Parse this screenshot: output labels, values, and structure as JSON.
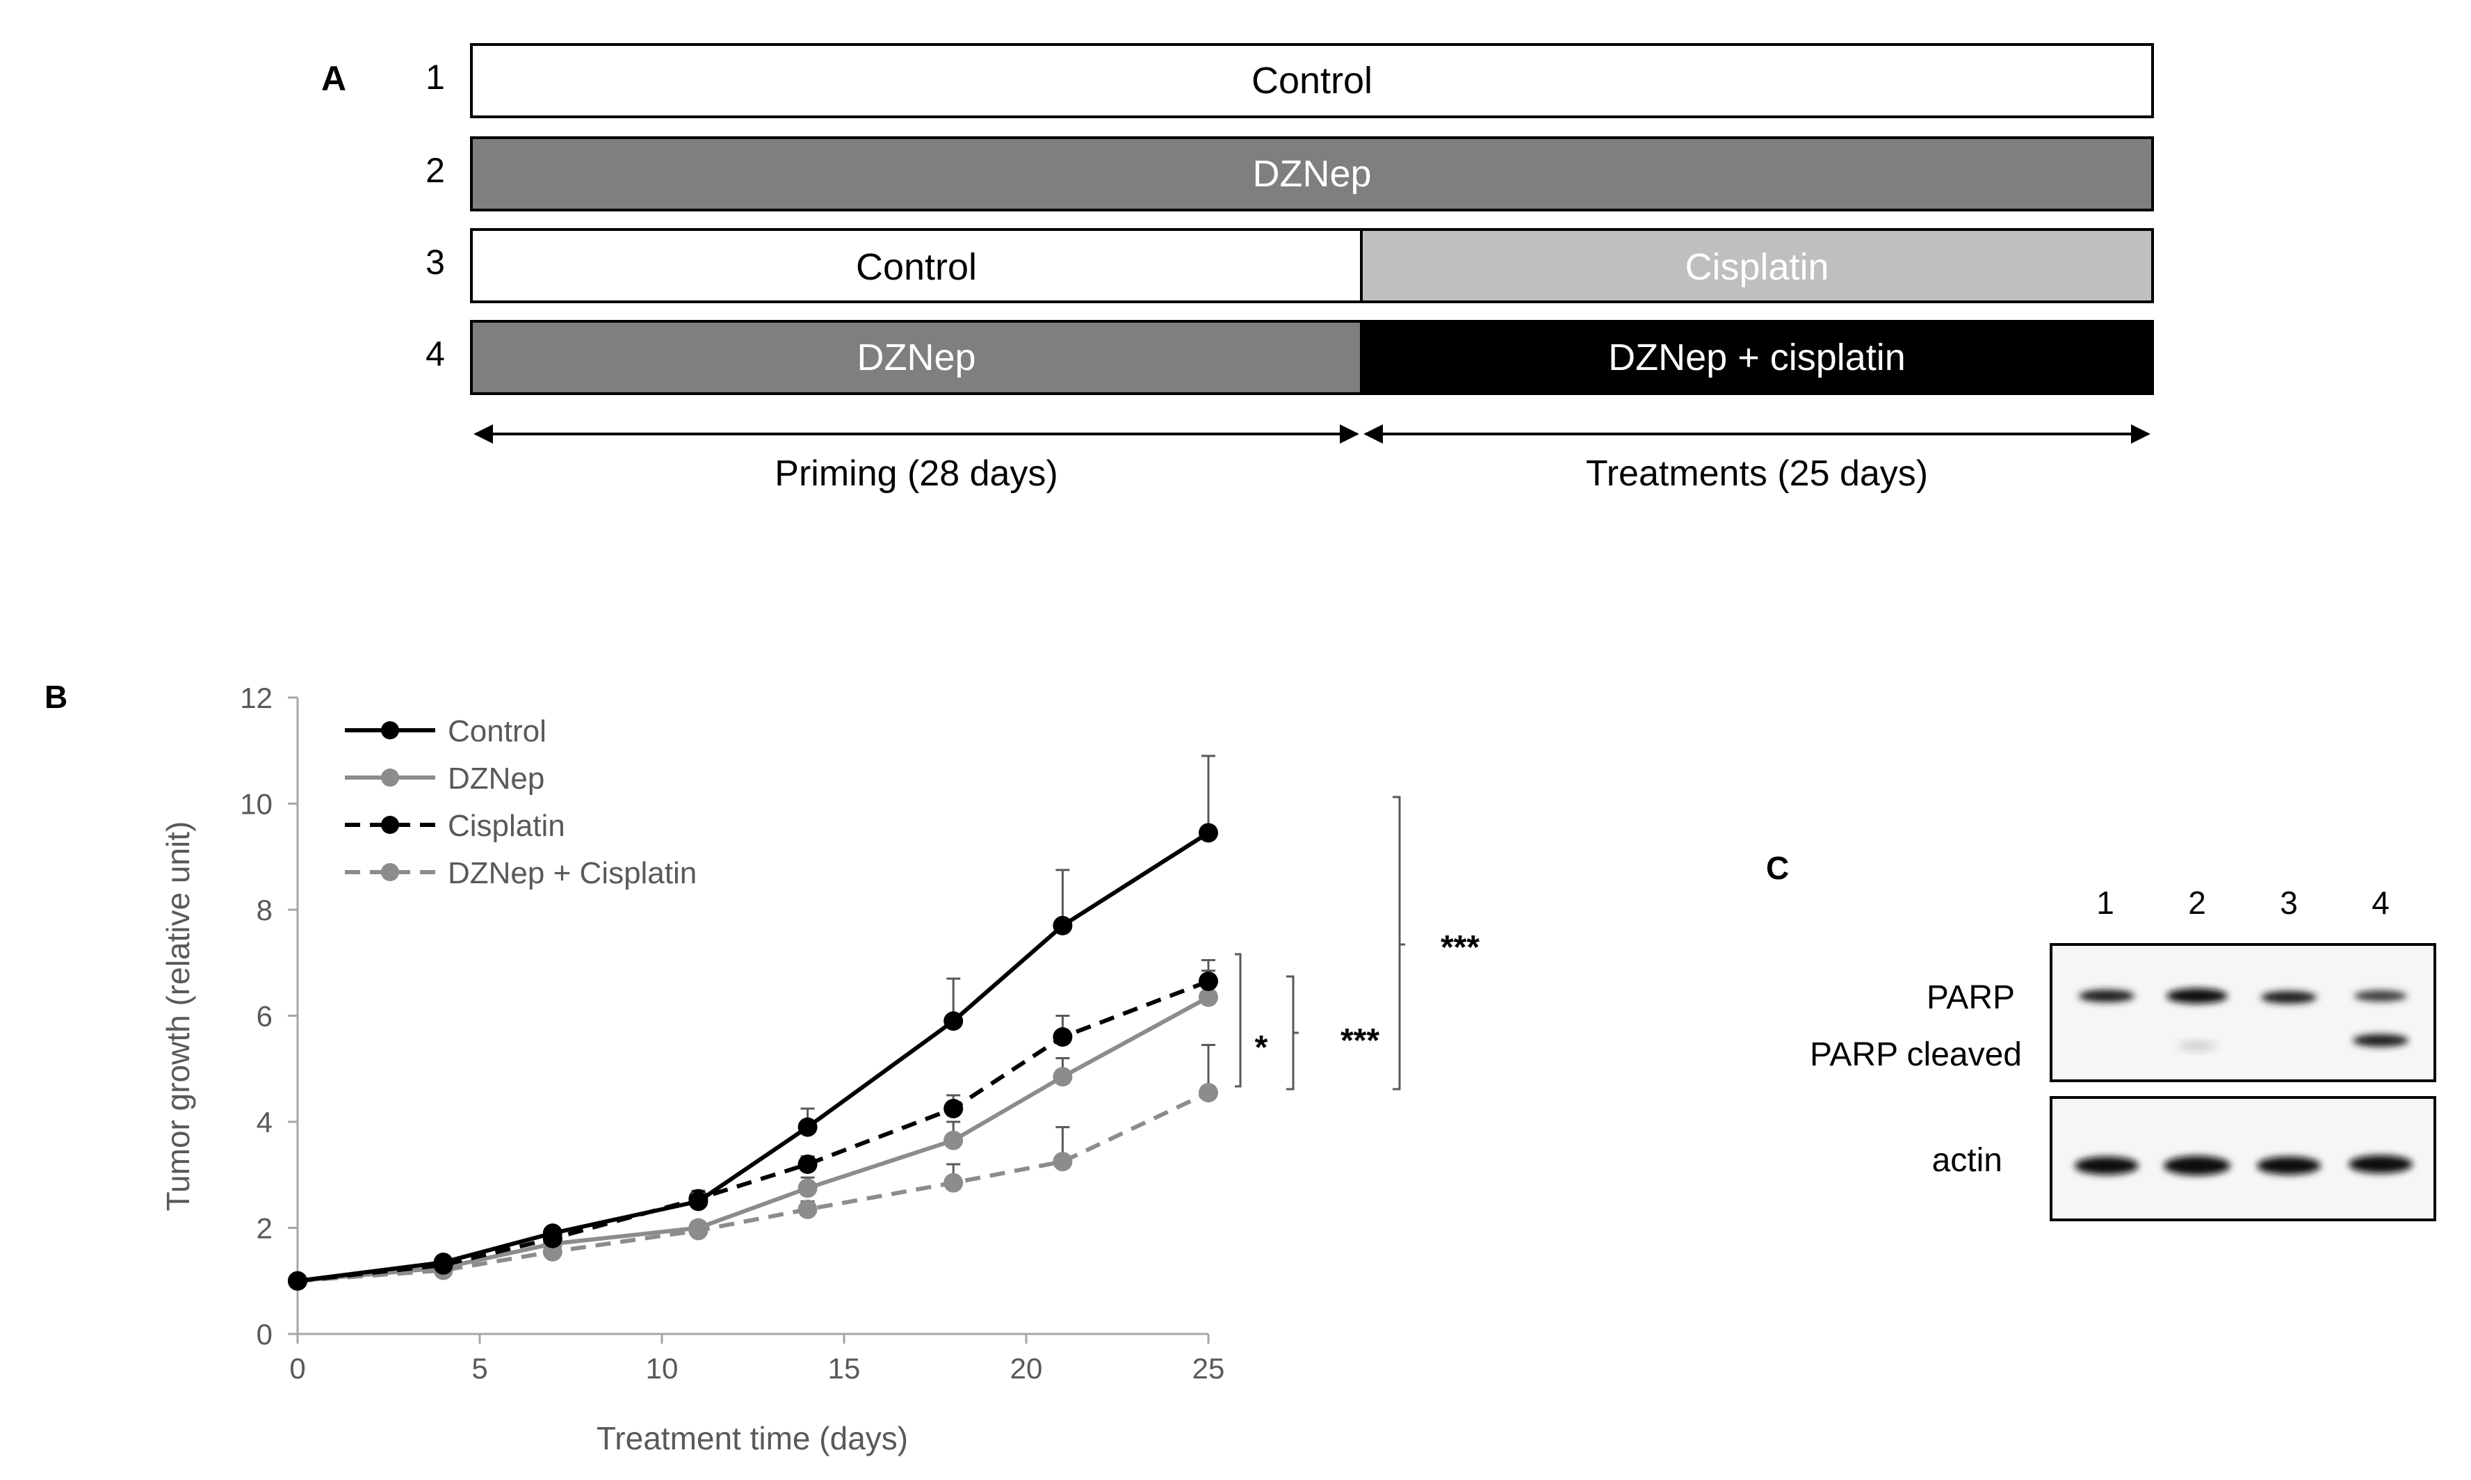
{
  "panel_a": {
    "label": "A",
    "rows": [
      {
        "number": "1",
        "segments": [
          {
            "text": "Control",
            "fill": "#ffffff",
            "text_color": "#000000"
          }
        ]
      },
      {
        "number": "2",
        "segments": [
          {
            "text": "DZNep",
            "fill": "#7f7f7f",
            "text_color": "#ffffff"
          }
        ]
      },
      {
        "number": "3",
        "segments": [
          {
            "text": "Control",
            "fill": "#ffffff",
            "text_color": "#000000"
          },
          {
            "text": "Cisplatin",
            "fill": "#bfbfbf",
            "text_color": "#ffffff"
          }
        ]
      },
      {
        "number": "4",
        "segments": [
          {
            "text": "DZNep",
            "fill": "#7f7f7f",
            "text_color": "#ffffff"
          },
          {
            "text": "DZNep + cisplatin",
            "fill": "#000000",
            "text_color": "#ffffff"
          }
        ]
      }
    ],
    "phases": [
      "Priming (28 days)",
      "Treatments (25 days)"
    ]
  },
  "panel_b": {
    "label": "B",
    "significance": [
      "*",
      "***",
      "***"
    ]
  },
  "chart_data": {
    "type": "line",
    "title": "",
    "xlabel": "Treatment time (days)",
    "ylabel": "Tumor growth (relative unit)",
    "xlim": [
      0,
      25
    ],
    "ylim": [
      0,
      12
    ],
    "x_ticks": [
      0,
      5,
      10,
      15,
      20,
      25
    ],
    "y_ticks": [
      0,
      2,
      4,
      6,
      8,
      10,
      12
    ],
    "grid": false,
    "legend_position": "top-left",
    "x": [
      0,
      4,
      7,
      11,
      14,
      18,
      21,
      25
    ],
    "series": [
      {
        "name": "Control",
        "color": "#000000",
        "dash": false,
        "values": [
          1.0,
          1.35,
          1.9,
          2.5,
          3.9,
          5.9,
          7.7,
          9.45
        ],
        "errors": [
          0,
          0.1,
          0.1,
          0.15,
          0.35,
          0.8,
          1.05,
          1.45
        ]
      },
      {
        "name": "DZNep",
        "color": "#8c8c8c",
        "dash": false,
        "values": [
          1.0,
          1.25,
          1.7,
          2.0,
          2.75,
          3.65,
          4.85,
          6.35
        ],
        "errors": [
          0,
          0.1,
          0.1,
          0.12,
          0.2,
          0.35,
          0.35,
          0.5
        ]
      },
      {
        "name": "Cisplatin",
        "color": "#000000",
        "dash": true,
        "values": [
          1.0,
          1.3,
          1.8,
          2.55,
          3.2,
          4.25,
          5.6,
          6.65
        ],
        "errors": [
          0,
          0.1,
          0.1,
          0.15,
          0.15,
          0.25,
          0.4,
          0.4
        ]
      },
      {
        "name": "DZNep + Cisplatin",
        "color": "#8c8c8c",
        "dash": true,
        "values": [
          1.0,
          1.2,
          1.55,
          1.95,
          2.35,
          2.85,
          3.25,
          4.55
        ],
        "errors": [
          0,
          0.08,
          0.08,
          0.1,
          0.15,
          0.35,
          0.65,
          0.9
        ]
      }
    ]
  },
  "panel_c": {
    "label": "C",
    "lanes": [
      "1",
      "2",
      "3",
      "4"
    ],
    "band_labels": [
      "PARP",
      "PARP cleaved",
      "actin"
    ]
  }
}
